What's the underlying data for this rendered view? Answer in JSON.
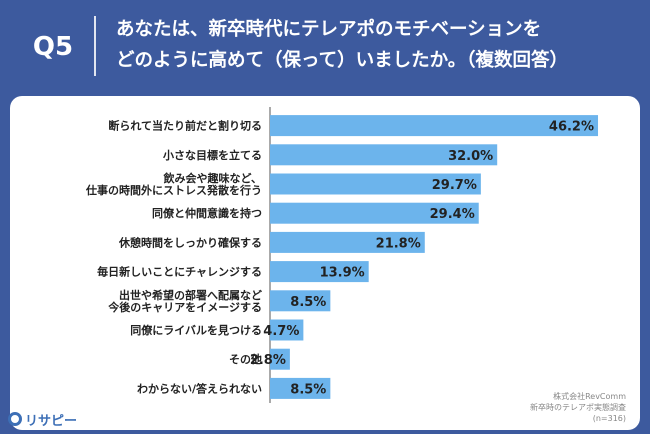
{
  "header": {
    "question_no": "Q5",
    "question_line1": "あなたは、新卒時代にテレアポのモチベーションを",
    "question_line2": "どのように高めて（保って）いましたか。（複数回答）"
  },
  "source": {
    "line1": "株式会社RevComm",
    "line2": "新卒時のテレアポ実態調査",
    "line3": "(n=316)"
  },
  "logo": {
    "text": "リサピー",
    "icon": "magnifier-icon"
  },
  "colors": {
    "background": "#3d5a9e",
    "bar": "#6cb4ec",
    "axis": "#555555"
  },
  "chart_data": {
    "type": "bar",
    "orientation": "horizontal",
    "categories": [
      [
        "断られて当たり前だと割り切る"
      ],
      [
        "小さな目標を立てる"
      ],
      [
        "飲み会や趣味など、",
        "仕事の時間外にストレス発散を行う"
      ],
      [
        "同僚と仲間意識を持つ"
      ],
      [
        "休憩時間をしっかり確保する"
      ],
      [
        "毎日新しいことにチャレンジする"
      ],
      [
        "出世や希望の部署へ配属など",
        "今後のキャリアをイメージする"
      ],
      [
        "同僚にライバルを見つける"
      ],
      [
        "その他"
      ],
      [
        "わからない/答えられない"
      ]
    ],
    "values": [
      46.2,
      32.0,
      29.7,
      29.4,
      21.8,
      13.9,
      8.5,
      4.7,
      2.8,
      8.5
    ],
    "value_labels": [
      "46.2%",
      "32.0%",
      "29.7%",
      "29.4%",
      "21.8%",
      "13.9%",
      "8.5%",
      "4.7%",
      "2.8%",
      "8.5%"
    ],
    "xlim": [
      0,
      50
    ],
    "grid": false,
    "legend": "none"
  }
}
